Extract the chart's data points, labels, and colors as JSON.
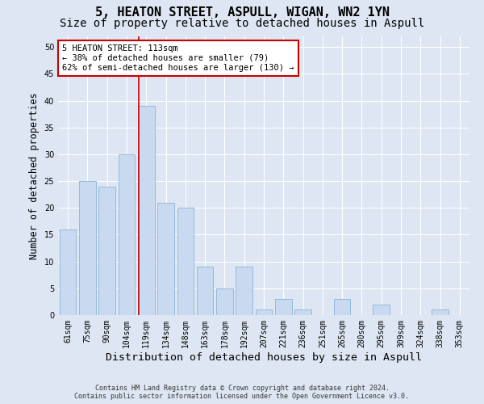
{
  "title": "5, HEATON STREET, ASPULL, WIGAN, WN2 1YN",
  "subtitle": "Size of property relative to detached houses in Aspull",
  "xlabel": "Distribution of detached houses by size in Aspull",
  "ylabel": "Number of detached properties",
  "categories": [
    "61sqm",
    "75sqm",
    "90sqm",
    "104sqm",
    "119sqm",
    "134sqm",
    "148sqm",
    "163sqm",
    "178sqm",
    "192sqm",
    "207sqm",
    "221sqm",
    "236sqm",
    "251sqm",
    "265sqm",
    "280sqm",
    "295sqm",
    "309sqm",
    "324sqm",
    "338sqm",
    "353sqm"
  ],
  "values": [
    16,
    25,
    24,
    30,
    39,
    21,
    20,
    9,
    5,
    9,
    1,
    3,
    1,
    0,
    3,
    0,
    2,
    0,
    0,
    1,
    0
  ],
  "bar_color": "#c9d9f0",
  "bar_edgecolor": "#8ab4d8",
  "background_color": "#dde6f2",
  "grid_color": "#ffffff",
  "marker_label": "5 HEATON STREET: 113sqm",
  "annotation_line1": "← 38% of detached houses are smaller (79)",
  "annotation_line2": "62% of semi-detached houses are larger (130) →",
  "annotation_box_color": "#ffffff",
  "annotation_box_edgecolor": "#cc0000",
  "ylim": [
    0,
    52
  ],
  "yticks": [
    0,
    5,
    10,
    15,
    20,
    25,
    30,
    35,
    40,
    45,
    50
  ],
  "footer1": "Contains HM Land Registry data © Crown copyright and database right 2024.",
  "footer2": "Contains public sector information licensed under the Open Government Licence v3.0.",
  "vline_color": "#cc0000",
  "vline_x": 3.6,
  "title_fontsize": 11,
  "subtitle_fontsize": 10,
  "tick_fontsize": 7,
  "ylabel_fontsize": 8.5,
  "xlabel_fontsize": 9.5,
  "annotation_fontsize": 7.5,
  "footer_fontsize": 6
}
